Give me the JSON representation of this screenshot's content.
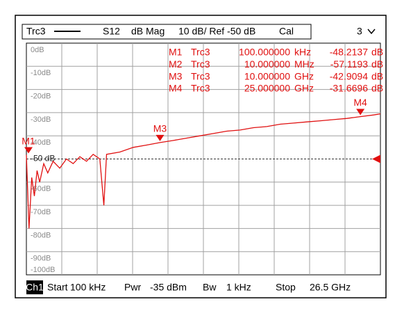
{
  "header": {
    "trace": "Trc3",
    "parameter": "S12",
    "format": "dB Mag",
    "scale": "10 dB/ Ref -50 dB",
    "cal": "Cal",
    "channel": "3"
  },
  "markers": [
    {
      "name": "M1",
      "trace": "Trc3",
      "stimulus": "100.000000",
      "unit": "kHz",
      "value": "-48.2137",
      "value_unit": "dB"
    },
    {
      "name": "M2",
      "trace": "Trc3",
      "stimulus": "10.000000",
      "unit": "MHz",
      "value": "-57.1193",
      "value_unit": "dB"
    },
    {
      "name": "M3",
      "trace": "Trc3",
      "stimulus": "10.000000",
      "unit": "GHz",
      "value": "-42.9094",
      "value_unit": "dB"
    },
    {
      "name": "M4",
      "trace": "Trc3",
      "stimulus": "25.000000",
      "unit": "GHz",
      "value": "-31.6696",
      "value_unit": "dB"
    }
  ],
  "footer": {
    "channel": "Ch1",
    "start_label": "Start",
    "start": "100 kHz",
    "power_label": "Pwr",
    "power": "-35 dBm",
    "bw_label": "Bw",
    "bw": "1 kHz",
    "stop_label": "Stop",
    "stop": "26.5 GHz"
  },
  "chart_data": {
    "type": "line",
    "x": [
      0.0001,
      0.2,
      0.4,
      0.6,
      0.8,
      1,
      1.3,
      1.6,
      2,
      2.5,
      3,
      3.5,
      4,
      4.5,
      5,
      5.5,
      5.8,
      6,
      7,
      8,
      9,
      10,
      11,
      12,
      13,
      14,
      15,
      16,
      17,
      18,
      19,
      20,
      21,
      22,
      23,
      24,
      25,
      26,
      26.5
    ],
    "series": [
      {
        "name": "Trc3",
        "color": "#e01010",
        "values": [
          -48.2,
          -80,
          -58,
          -66,
          -55,
          -60,
          -52,
          -56,
          -51,
          -54,
          -50,
          -52,
          -49,
          -51,
          -48,
          -50,
          -70,
          -48,
          -47,
          -45,
          -44,
          -42.9,
          -42,
          -41,
          -40,
          -39,
          -38,
          -37.5,
          -36.5,
          -36,
          -35,
          -34.5,
          -34,
          -33.5,
          -33,
          -32.5,
          -31.7,
          -31,
          -30.5
        ]
      }
    ],
    "xlim": [
      0.0001,
      26.5
    ],
    "ylim": [
      -100,
      0
    ],
    "yticks": [
      {
        "value": 0,
        "label": "0dB"
      },
      {
        "value": -10,
        "label": "-10dB"
      },
      {
        "value": -20,
        "label": "-20dB"
      },
      {
        "value": -30,
        "label": "-30dB"
      },
      {
        "value": -40,
        "label": "-40dB"
      },
      {
        "value": -50,
        "label": "-50 dB"
      },
      {
        "value": -60,
        "label": "-60dB"
      },
      {
        "value": -70,
        "label": "-70dB"
      },
      {
        "value": -80,
        "label": "-80dB"
      },
      {
        "value": -90,
        "label": "-90dB"
      },
      {
        "value": -100,
        "label": "-100dB"
      }
    ],
    "grid": true
  }
}
